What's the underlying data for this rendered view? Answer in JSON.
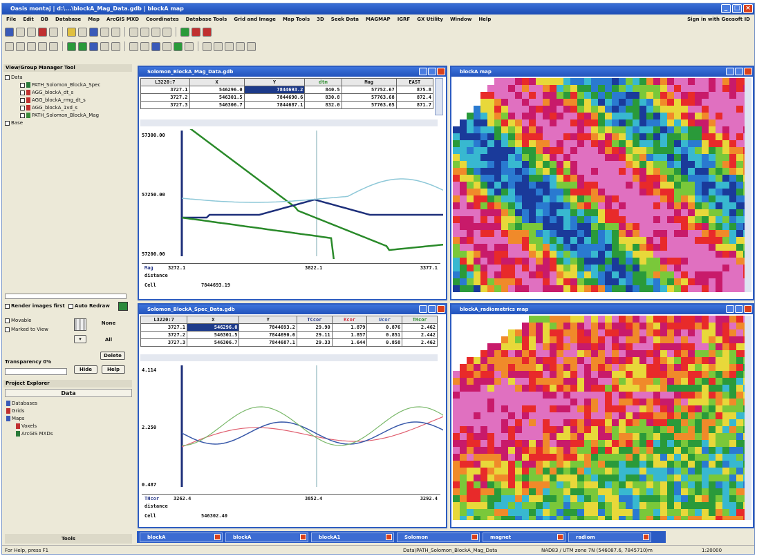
{
  "window": {
    "title": "Oasis montaj | d:\\...\\blockA_Mag_Data.gdb | blockA map"
  },
  "menu": [
    "File",
    "Edit",
    "DB",
    "Database",
    "Map",
    "ArcGIS MXD",
    "Coordinates",
    "Database Tools",
    "Grid and Image",
    "Map Tools",
    "3D",
    "Seek Data",
    "MAGMAP",
    "IGRF",
    "GX Utility",
    "Window",
    "Help"
  ],
  "signin": "Sign in with Geosoft ID",
  "left_panel": {
    "title": "View/Group Manager Tool",
    "tree": [
      {
        "label": "Data",
        "level": 0
      },
      {
        "label": "PATH_Solomon_BlockA_Spec",
        "level": 1
      },
      {
        "label": "AGG_blockA_dt_s",
        "level": 1
      },
      {
        "label": "AGG_blockA_rmg_dt_s",
        "level": 1
      },
      {
        "label": "AGG_blockA_1vd_s",
        "level": 1
      },
      {
        "label": "PATH_Solomon_BlockA_Mag",
        "level": 1
      },
      {
        "label": "Base",
        "level": 0
      }
    ],
    "render_first": "Render images first",
    "auto_redraw": "Auto Redraw",
    "movable": "Movable",
    "marked_view": "Marked to View",
    "none_label": "None",
    "all_label": "All",
    "delete_label": "Delete",
    "transparency": "Transparency 0%",
    "hide_label": "Hide",
    "help_label": "Help"
  },
  "project_explorer": {
    "title": "Project Explorer",
    "header": "Data",
    "items": [
      "Databases",
      "Grids",
      "Maps",
      "Voxels",
      "ArcGIS MXDs"
    ],
    "tools_label": "Tools"
  },
  "mag_db": {
    "title": "Solomon_BlockA_Mag_Data.gdb",
    "columns": [
      "L3220:7",
      "X",
      "Y",
      "dtm",
      "Mag",
      "EAST"
    ],
    "rows": [
      [
        "3727.1",
        "546296.0",
        "7844693.2",
        "840.5",
        "57752.67",
        "875.8"
      ],
      [
        "3727.2",
        "546301.5",
        "7844690.6",
        "830.8",
        "57763.68",
        "872.4"
      ],
      [
        "3727.3",
        "546306.7",
        "7844687.1",
        "832.0",
        "57763.65",
        "871.7"
      ]
    ],
    "y_ticks": [
      "57300.00",
      "57250.00",
      "57200.00"
    ],
    "footer_field": "Mag",
    "footer_vals": [
      "3272.1",
      "3822.1",
      "3377.1"
    ],
    "distance": "distance",
    "cell_label": "Cell",
    "cell_value": "7844693.19"
  },
  "spec_db": {
    "title": "Solomon_BlockA_Spec_Data.gdb",
    "columns": [
      "L3220:7",
      "X",
      "Y",
      "TCcor",
      "Kcor",
      "Ucor",
      "THcor"
    ],
    "rows": [
      [
        "3727.1",
        "546296.0",
        "7844693.2",
        "29.90",
        "1.879",
        "0.876",
        "2.462"
      ],
      [
        "3727.2",
        "546301.5",
        "7844690.6",
        "29.11",
        "1.857",
        "0.851",
        "2.442"
      ],
      [
        "3727.3",
        "546306.7",
        "7844687.1",
        "29.33",
        "1.644",
        "0.858",
        "2.462"
      ]
    ],
    "y_ticks": [
      "4.114",
      "2.250",
      "0.487"
    ],
    "footer_field": "THcor",
    "footer_vals": [
      "3262.4",
      "3852.4",
      "3292.4"
    ],
    "distance": "distance",
    "cell_label": "Cell",
    "cell_value": "546302.40"
  },
  "maps": {
    "top_title": "blockA map",
    "bottom_title": "blockA_radiometrics map"
  },
  "taskbar": [
    "blockA",
    "blockA",
    "blockA1",
    "Solomon",
    "magnet",
    "radiom"
  ],
  "status": {
    "help": "For Help, press F1",
    "path": "Data\\PATH_Solomon_BlockA_Mag_Data",
    "coords": "NAD83 / UTM zone 7N   (546087.6, 7845710)m",
    "scale": "1:20000"
  },
  "colors": {
    "titlebar": "#2253bc",
    "mag_green": "#2a8a2a",
    "mag_navy": "#1d2f7a",
    "mag_cyan": "#8ec8d8",
    "spec_red": "#e06070",
    "spec_blue": "#3a5aaa",
    "spec_green": "#7ab86a"
  }
}
